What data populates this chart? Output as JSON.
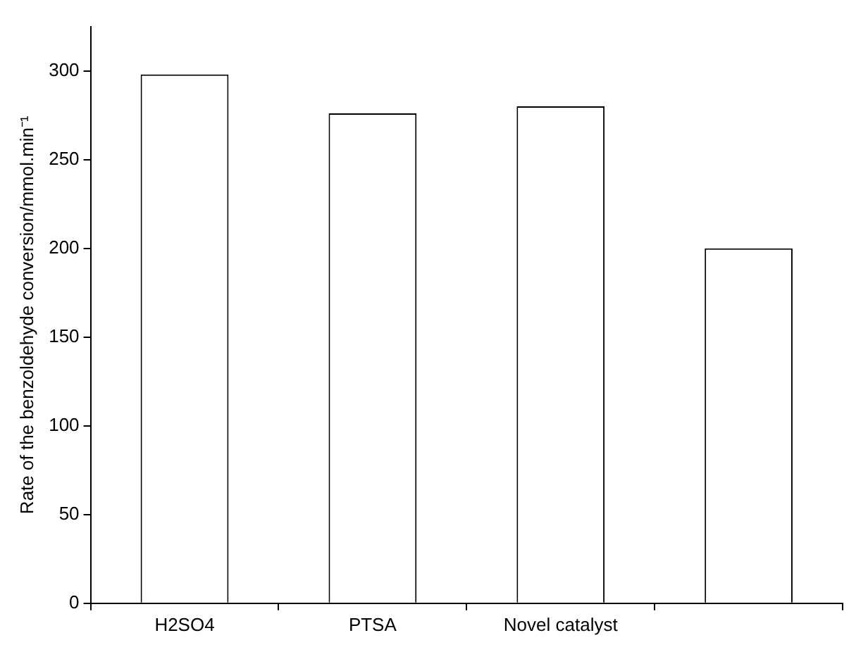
{
  "chart_data": {
    "type": "bar",
    "ylabel": "Rate of the benzoldehyde conversion/mmol.min⁻¹",
    "categories": [
      "H2SO4",
      "PTSA",
      "Novel catalyst",
      null
    ],
    "values": [
      298,
      276,
      280,
      200
    ],
    "color": "#ffffff",
    "ylim": [
      0,
      325
    ],
    "yticks": [
      0,
      50,
      100,
      150,
      200,
      250,
      300
    ],
    "grid": false
  }
}
